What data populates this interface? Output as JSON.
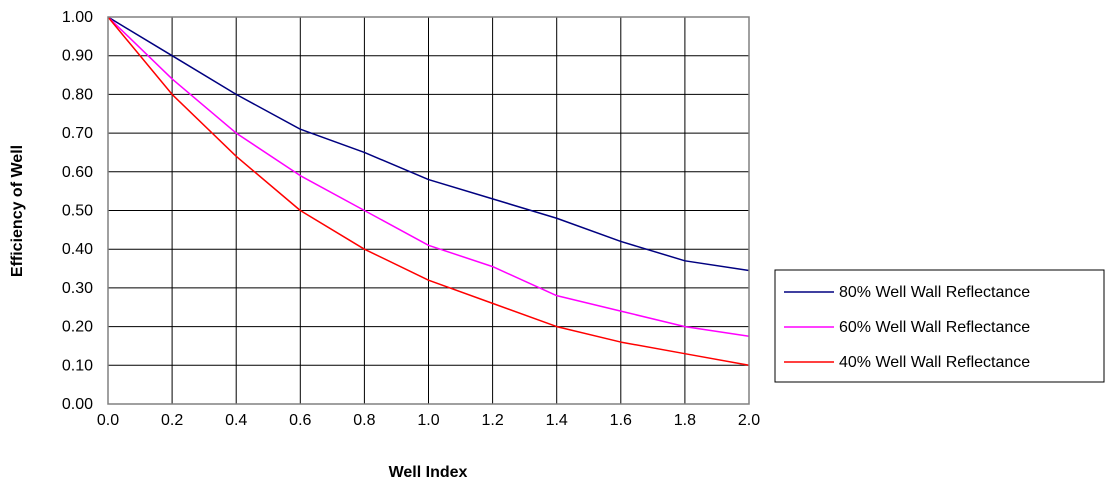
{
  "chart_data": {
    "type": "line",
    "title": "",
    "xlabel": "Well Index",
    "ylabel": "Efficiency of Well",
    "xlim": [
      0,
      2.0
    ],
    "ylim": [
      0,
      1.0
    ],
    "grid": true,
    "legend_position": "right",
    "x": [
      0.0,
      0.2,
      0.4,
      0.6,
      0.8,
      1.0,
      1.2,
      1.4,
      1.6,
      1.8,
      2.0
    ],
    "x_tick_labels": [
      "0.0",
      "0.2",
      "0.4",
      "0.6",
      "0.8",
      "1.0",
      "1.2",
      "1.4",
      "1.6",
      "1.8",
      "2.0"
    ],
    "y_tick_labels": [
      "0.00",
      "0.10",
      "0.20",
      "0.30",
      "0.40",
      "0.50",
      "0.60",
      "0.70",
      "0.80",
      "0.90",
      "1.00"
    ],
    "series": [
      {
        "name": "80% Well Wall Reflectance",
        "color": "#000080",
        "values": [
          1.0,
          0.9,
          0.8,
          0.71,
          0.65,
          0.58,
          0.53,
          0.48,
          0.42,
          0.37,
          0.345
        ]
      },
      {
        "name": "60% Well Wall Reflectance",
        "color": "#FF00FF",
        "values": [
          1.0,
          0.84,
          0.7,
          0.59,
          0.5,
          0.41,
          0.355,
          0.28,
          0.24,
          0.2,
          0.175
        ]
      },
      {
        "name": "40% Well Wall Reflectance",
        "color": "#FF0000",
        "values": [
          1.0,
          0.8,
          0.64,
          0.5,
          0.4,
          0.32,
          0.26,
          0.2,
          0.16,
          0.13,
          0.1
        ]
      }
    ]
  }
}
